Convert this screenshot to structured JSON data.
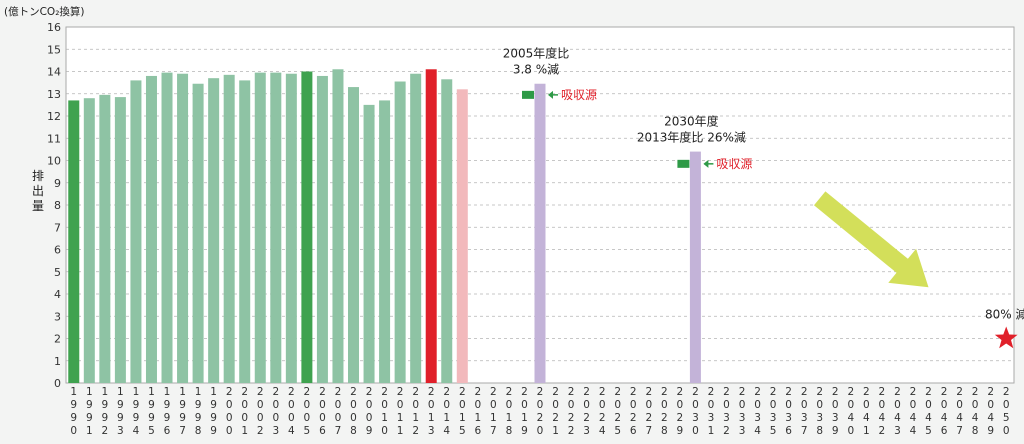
{
  "chart_data": {
    "type": "bar",
    "unit_label": "(億トンCO₂換算)",
    "ylabel": "排出量",
    "ylim": [
      0,
      16
    ],
    "yticks": [
      0,
      1,
      2,
      3,
      4,
      5,
      6,
      7,
      8,
      9,
      10,
      11,
      12,
      13,
      14,
      15,
      16
    ],
    "grid": true,
    "x": [
      1990,
      1991,
      1992,
      1993,
      1994,
      1995,
      1996,
      1997,
      1998,
      1999,
      2000,
      2001,
      2002,
      2003,
      2004,
      2005,
      2006,
      2007,
      2008,
      2009,
      2010,
      2011,
      2012,
      2013,
      2014,
      2015,
      2016,
      2017,
      2018,
      2019,
      2020,
      2021,
      2022,
      2023,
      2024,
      2025,
      2026,
      2027,
      2028,
      2029,
      2030,
      2031,
      2032,
      2033,
      2034,
      2035,
      2036,
      2037,
      2038,
      2039,
      2040,
      2041,
      2042,
      2043,
      2044,
      2045,
      2046,
      2047,
      2048,
      2049,
      2050
    ],
    "bars": [
      {
        "year": 1990,
        "value": 12.7,
        "color": "#3fa24f"
      },
      {
        "year": 1991,
        "value": 12.8,
        "color": "#8ec3a4"
      },
      {
        "year": 1992,
        "value": 12.95,
        "color": "#8ec3a4"
      },
      {
        "year": 1993,
        "value": 12.85,
        "color": "#8ec3a4"
      },
      {
        "year": 1994,
        "value": 13.6,
        "color": "#8ec3a4"
      },
      {
        "year": 1995,
        "value": 13.8,
        "color": "#8ec3a4"
      },
      {
        "year": 1996,
        "value": 13.95,
        "color": "#8ec3a4"
      },
      {
        "year": 1997,
        "value": 13.9,
        "color": "#8ec3a4"
      },
      {
        "year": 1998,
        "value": 13.45,
        "color": "#8ec3a4"
      },
      {
        "year": 1999,
        "value": 13.7,
        "color": "#8ec3a4"
      },
      {
        "year": 2000,
        "value": 13.85,
        "color": "#8ec3a4"
      },
      {
        "year": 2001,
        "value": 13.6,
        "color": "#8ec3a4"
      },
      {
        "year": 2002,
        "value": 13.95,
        "color": "#8ec3a4"
      },
      {
        "year": 2003,
        "value": 13.95,
        "color": "#8ec3a4"
      },
      {
        "year": 2004,
        "value": 13.9,
        "color": "#8ec3a4"
      },
      {
        "year": 2005,
        "value": 14.0,
        "color": "#3fa24f"
      },
      {
        "year": 2006,
        "value": 13.8,
        "color": "#8ec3a4"
      },
      {
        "year": 2007,
        "value": 14.1,
        "color": "#8ec3a4"
      },
      {
        "year": 2008,
        "value": 13.3,
        "color": "#8ec3a4"
      },
      {
        "year": 2009,
        "value": 12.5,
        "color": "#8ec3a4"
      },
      {
        "year": 2010,
        "value": 12.7,
        "color": "#8ec3a4"
      },
      {
        "year": 2011,
        "value": 13.55,
        "color": "#8ec3a4"
      },
      {
        "year": 2012,
        "value": 13.9,
        "color": "#8ec3a4"
      },
      {
        "year": 2013,
        "value": 14.1,
        "color": "#e0202a"
      },
      {
        "year": 2014,
        "value": 13.65,
        "color": "#8ec3a4"
      },
      {
        "year": 2015,
        "value": 13.2,
        "color": "#f2b9bc"
      },
      {
        "year": 2020,
        "value": 13.45,
        "color": "#c3b3d8"
      },
      {
        "year": 2030,
        "value": 10.4,
        "color": "#c3b3d8"
      }
    ],
    "absorption_markers": [
      {
        "year": 2020,
        "value": 12.95,
        "label": "吸収源"
      },
      {
        "year": 2030,
        "value": 9.85,
        "label": "吸収源"
      }
    ],
    "annotations": [
      {
        "year": 2020,
        "line1": "2005年度比",
        "line2": "3.8 %減"
      },
      {
        "year": 2030,
        "line1": "2030年度",
        "line2": "2013年度比 26%減"
      }
    ],
    "target": {
      "year": 2050,
      "value": 2.0,
      "label": "80% 減",
      "color": "#e0202a"
    },
    "trend_arrow": {
      "from": [
        2038,
        8.3
      ],
      "to": [
        2045,
        4.3
      ],
      "color": "#d3df5a"
    }
  }
}
